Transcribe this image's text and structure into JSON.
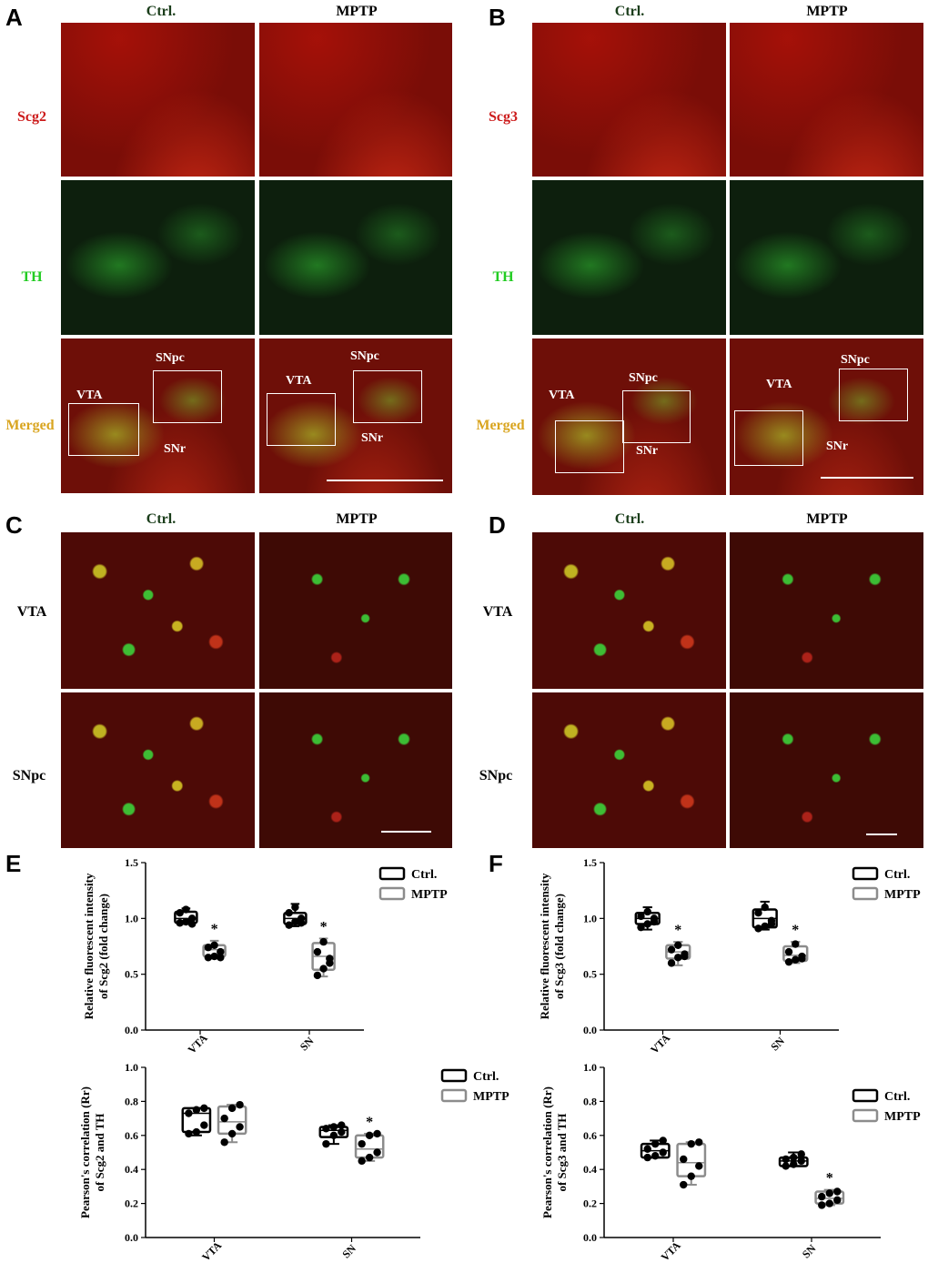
{
  "panels": {
    "A": "A",
    "B": "B",
    "C": "C",
    "D": "D",
    "E": "E",
    "F": "F"
  },
  "columns": {
    "ctrl": "Ctrl.",
    "mptp": "MPTP"
  },
  "rows": {
    "scg2": "Scg2",
    "scg3": "Scg3",
    "th": "TH",
    "merged": "Merged",
    "vta": "VTA",
    "snpc": "SNpc"
  },
  "regions": {
    "vta": "VTA",
    "snpc": "SNpc",
    "snr": "SNr"
  },
  "colors": {
    "ctrl_label": "#1a3d1a",
    "red_label": "#cc1a1a",
    "green_label": "#22cc22",
    "merged_label": "#d9a520",
    "ctrl_box": "#000000",
    "mptp_box": "#8c8c8c"
  },
  "chart_data": [
    {
      "type": "box",
      "panel": "E",
      "ylabel": "Relative fluorescent intensity of Scg2 (fold change)",
      "ylim": [
        0,
        1.5
      ],
      "yticks": [
        "0.0",
        "0.5",
        "1.0",
        "1.5"
      ],
      "categories": [
        "VTA",
        "SN"
      ],
      "legend": [
        "Ctrl.",
        "MPTP"
      ],
      "significance": [
        "*",
        "*"
      ],
      "series": [
        {
          "name": "Ctrl.",
          "groups": [
            {
              "min": 0.95,
              "q1": 0.96,
              "median": 1.0,
              "q3": 1.06,
              "max": 1.09,
              "points": [
                0.96,
                0.97,
                1.0,
                1.05,
                1.08,
                0.95
              ]
            },
            {
              "min": 0.93,
              "q1": 0.95,
              "median": 1.0,
              "q3": 1.05,
              "max": 1.13,
              "points": [
                0.94,
                0.97,
                1.0,
                1.05,
                1.1,
                0.96
              ]
            }
          ]
        },
        {
          "name": "MPTP",
          "groups": [
            {
              "min": 0.64,
              "q1": 0.66,
              "median": 0.72,
              "q3": 0.76,
              "max": 0.8,
              "points": [
                0.65,
                0.66,
                0.7,
                0.74,
                0.76,
                0.65
              ]
            },
            {
              "min": 0.48,
              "q1": 0.54,
              "median": 0.66,
              "q3": 0.78,
              "max": 0.82,
              "points": [
                0.49,
                0.55,
                0.64,
                0.7,
                0.79,
                0.6
              ]
            }
          ]
        }
      ]
    },
    {
      "type": "box",
      "panel": "E",
      "ylabel": "Pearson's correlation (Rr) of Scg2 and TH",
      "ylim": [
        0,
        1.0
      ],
      "yticks": [
        "0.0",
        "0.2",
        "0.4",
        "0.6",
        "0.8",
        "1.0"
      ],
      "categories": [
        "VTA",
        "SN"
      ],
      "legend": [
        "Ctrl.",
        "MPTP"
      ],
      "significance": [
        "",
        "*"
      ],
      "series": [
        {
          "name": "Ctrl.",
          "groups": [
            {
              "min": 0.6,
              "q1": 0.62,
              "median": 0.73,
              "q3": 0.76,
              "max": 0.76,
              "points": [
                0.61,
                0.62,
                0.66,
                0.73,
                0.75,
                0.76
              ]
            },
            {
              "min": 0.55,
              "q1": 0.59,
              "median": 0.63,
              "q3": 0.65,
              "max": 0.66,
              "points": [
                0.55,
                0.6,
                0.62,
                0.64,
                0.65,
                0.66
              ]
            }
          ]
        },
        {
          "name": "MPTP",
          "groups": [
            {
              "min": 0.56,
              "q1": 0.61,
              "median": 0.68,
              "q3": 0.77,
              "max": 0.78,
              "points": [
                0.56,
                0.61,
                0.65,
                0.7,
                0.76,
                0.78
              ]
            },
            {
              "min": 0.45,
              "q1": 0.47,
              "median": 0.52,
              "q3": 0.6,
              "max": 0.61,
              "points": [
                0.45,
                0.47,
                0.5,
                0.55,
                0.6,
                0.61
              ]
            }
          ]
        }
      ]
    },
    {
      "type": "box",
      "panel": "F",
      "ylabel": "Relative fluorescent intensity of Scg3 (fold change)",
      "ylim": [
        0,
        1.5
      ],
      "yticks": [
        "0.0",
        "0.5",
        "1.0",
        "1.5"
      ],
      "categories": [
        "VTA",
        "SN"
      ],
      "legend": [
        "Ctrl.",
        "MPTP"
      ],
      "significance": [
        "*",
        "*"
      ],
      "series": [
        {
          "name": "Ctrl.",
          "groups": [
            {
              "min": 0.9,
              "q1": 0.95,
              "median": 1.0,
              "q3": 1.05,
              "max": 1.1,
              "points": [
                0.92,
                0.95,
                1.0,
                1.02,
                1.06,
                0.97
              ]
            },
            {
              "min": 0.9,
              "q1": 0.92,
              "median": 1.0,
              "q3": 1.08,
              "max": 1.15,
              "points": [
                0.91,
                0.93,
                0.98,
                1.05,
                1.1,
                0.95
              ]
            }
          ]
        },
        {
          "name": "MPTP",
          "groups": [
            {
              "min": 0.58,
              "q1": 0.64,
              "median": 0.7,
              "q3": 0.76,
              "max": 0.79,
              "points": [
                0.6,
                0.65,
                0.68,
                0.72,
                0.76,
                0.66
              ]
            },
            {
              "min": 0.6,
              "q1": 0.62,
              "median": 0.67,
              "q3": 0.75,
              "max": 0.79,
              "points": [
                0.61,
                0.63,
                0.66,
                0.7,
                0.77,
                0.64
              ]
            }
          ]
        }
      ]
    },
    {
      "type": "box",
      "panel": "F",
      "ylabel": "Pearson's correlation (Rr) of Scg3 and TH",
      "ylim": [
        0,
        1.0
      ],
      "yticks": [
        "0.0",
        "0.2",
        "0.4",
        "0.6",
        "0.8",
        "1.0"
      ],
      "categories": [
        "VTA",
        "SN"
      ],
      "legend": [
        "Ctrl.",
        "MPTP"
      ],
      "significance": [
        "",
        "*"
      ],
      "series": [
        {
          "name": "Ctrl.",
          "groups": [
            {
              "min": 0.47,
              "q1": 0.47,
              "median": 0.51,
              "q3": 0.55,
              "max": 0.57,
              "points": [
                0.47,
                0.48,
                0.5,
                0.52,
                0.55,
                0.57
              ]
            },
            {
              "min": 0.42,
              "q1": 0.42,
              "median": 0.45,
              "q3": 0.47,
              "max": 0.5,
              "points": [
                0.42,
                0.43,
                0.45,
                0.46,
                0.47,
                0.49
              ]
            }
          ]
        },
        {
          "name": "MPTP",
          "groups": [
            {
              "min": 0.31,
              "q1": 0.36,
              "median": 0.44,
              "q3": 0.55,
              "max": 0.56,
              "points": [
                0.31,
                0.36,
                0.42,
                0.46,
                0.55,
                0.56
              ]
            },
            {
              "min": 0.19,
              "q1": 0.2,
              "median": 0.23,
              "q3": 0.27,
              "max": 0.28,
              "points": [
                0.19,
                0.2,
                0.22,
                0.24,
                0.26,
                0.27
              ]
            }
          ]
        }
      ]
    }
  ]
}
